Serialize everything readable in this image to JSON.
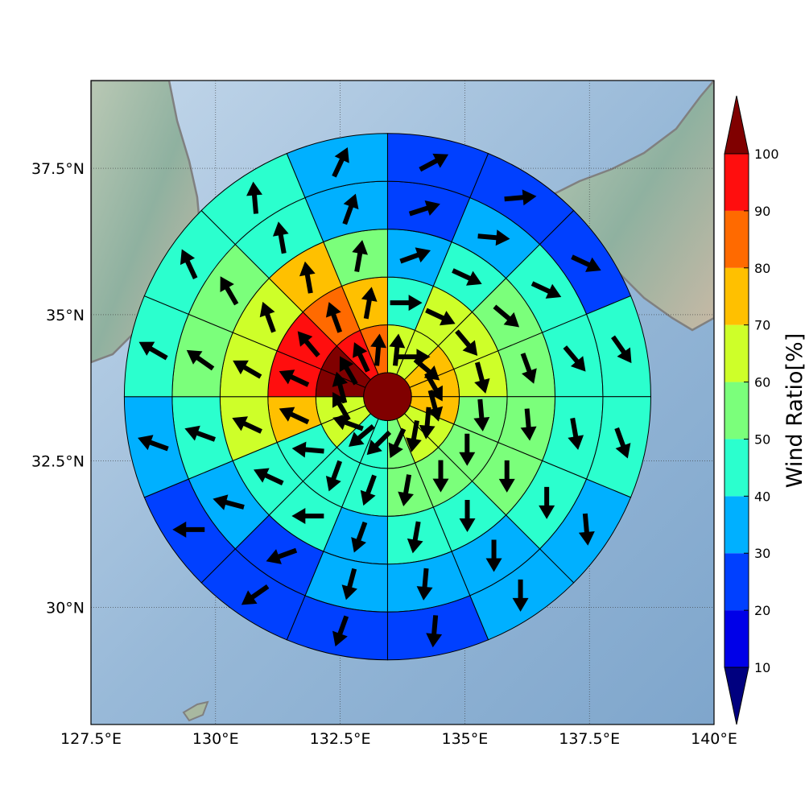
{
  "chart_data": {
    "type": "heatmap",
    "subtype": "polar sector map with wind vectors",
    "map": {
      "lon_range": [
        127.5,
        140.0
      ],
      "lat_range": [
        28.0,
        39.0
      ],
      "x_ticks": [
        {
          "value": 127.5,
          "label": "127.5°E"
        },
        {
          "value": 130.0,
          "label": "130°E"
        },
        {
          "value": 132.5,
          "label": "132.5°E"
        },
        {
          "value": 135.0,
          "label": "135°E"
        },
        {
          "value": 137.5,
          "label": "137.5°E"
        },
        {
          "value": 140.0,
          "label": "140°E"
        }
      ],
      "y_ticks": [
        {
          "value": 30.0,
          "label": "30°N"
        },
        {
          "value": 32.5,
          "label": "32.5°N"
        },
        {
          "value": 35.0,
          "label": "35°N"
        },
        {
          "value": 37.5,
          "label": "37.5°N"
        }
      ],
      "grid": true
    },
    "polar": {
      "center": {
        "lon": 133.45,
        "lat": 33.6
      },
      "sectors_per_ring": 16,
      "sector_order": "clockwise from north",
      "center_value": 100,
      "rings": [
        {
          "inner_km": 50,
          "outer_km": 150,
          "values": [
            60,
            60,
            70,
            70,
            70,
            60,
            60,
            50,
            40,
            40,
            60,
            60,
            100,
            100,
            90,
            80
          ],
          "vector_angles": [
            6,
            90,
            130,
            150,
            165,
            185,
            190,
            205,
            225,
            230,
            290,
            330,
            -15,
            -30,
            -25,
            5
          ]
        },
        {
          "inner_km": 150,
          "outer_km": 250,
          "values": [
            40,
            60,
            60,
            60,
            50,
            50,
            50,
            50,
            40,
            40,
            40,
            70,
            90,
            90,
            80,
            70
          ],
          "vector_angles": [
            90,
            115,
            140,
            165,
            175,
            180,
            180,
            190,
            200,
            200,
            275,
            295,
            295,
            320,
            340,
            10
          ]
        },
        {
          "inner_km": 250,
          "outer_km": 350,
          "values": [
            30,
            40,
            50,
            50,
            50,
            50,
            40,
            40,
            30,
            40,
            40,
            60,
            60,
            60,
            70,
            50
          ],
          "vector_angles": [
            70,
            115,
            130,
            160,
            175,
            180,
            180,
            190,
            200,
            270,
            295,
            295,
            300,
            340,
            350,
            10
          ]
        },
        {
          "inner_km": 350,
          "outer_km": 450,
          "values": [
            20,
            30,
            40,
            40,
            40,
            40,
            30,
            30,
            30,
            20,
            30,
            40,
            50,
            50,
            40,
            30
          ],
          "vector_angles": [
            72,
            95,
            115,
            140,
            170,
            180,
            180,
            185,
            195,
            250,
            285,
            290,
            305,
            330,
            350,
            20
          ]
        },
        {
          "inner_km": 450,
          "outer_km": 550,
          "values": [
            20,
            20,
            20,
            40,
            40,
            30,
            30,
            20,
            20,
            20,
            20,
            30,
            40,
            40,
            40,
            30
          ],
          "vector_angles": [
            62,
            85,
            115,
            145,
            160,
            175,
            180,
            185,
            200,
            235,
            270,
            290,
            300,
            335,
            355,
            25
          ]
        }
      ]
    },
    "colorbar": {
      "label": "Wind Ratio[%]",
      "ticks": [
        10,
        20,
        30,
        40,
        50,
        60,
        70,
        80,
        90,
        100
      ],
      "extend": "both",
      "levels": [
        {
          "min": 0,
          "max": 10,
          "color": "#00007f"
        },
        {
          "min": 10,
          "max": 20,
          "color": "#0000e8"
        },
        {
          "min": 20,
          "max": 30,
          "color": "#0040ff"
        },
        {
          "min": 30,
          "max": 40,
          "color": "#00b0ff"
        },
        {
          "min": 40,
          "max": 50,
          "color": "#2bffce"
        },
        {
          "min": 50,
          "max": 60,
          "color": "#7bff7b"
        },
        {
          "min": 60,
          "max": 70,
          "color": "#ceff29"
        },
        {
          "min": 70,
          "max": 80,
          "color": "#ffc000"
        },
        {
          "min": 80,
          "max": 90,
          "color": "#ff6a00"
        },
        {
          "min": 90,
          "max": 100,
          "color": "#ff0e0e"
        },
        {
          "min": 100,
          "max": 110,
          "color": "#800000"
        }
      ]
    }
  }
}
